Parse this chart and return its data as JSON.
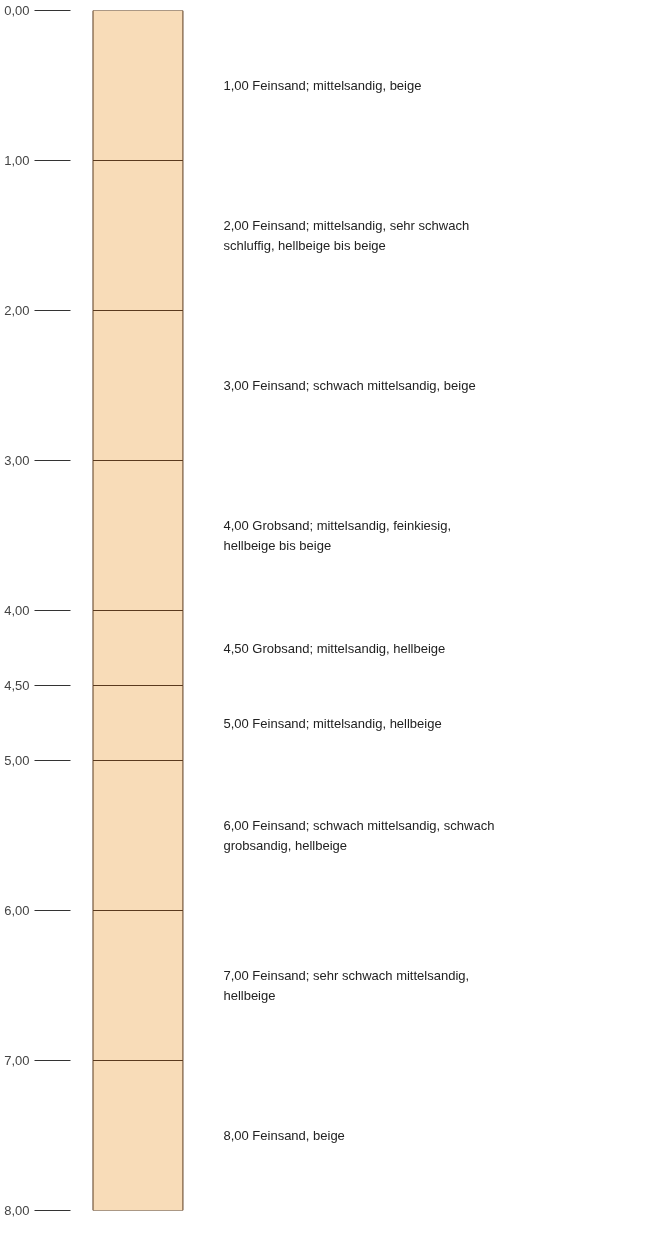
{
  "chart_data": {
    "type": "bar",
    "stacked": true,
    "categories": [
      null
    ],
    "tick_labels": "y",
    "grid": false,
    "ylim": [
      8,
      0
    ],
    "yticks": [
      {
        "value": 0,
        "label": "0,00"
      },
      {
        "value": 1,
        "label": "1,00"
      },
      {
        "value": 2,
        "label": "2,00"
      },
      {
        "value": 3,
        "label": "3,00"
      },
      {
        "value": 4,
        "label": "4,00"
      },
      {
        "value": 4.5,
        "label": "4,50"
      },
      {
        "value": 5,
        "label": "5,00"
      },
      {
        "value": 6,
        "label": "6,00"
      },
      {
        "value": 7,
        "label": "7,00"
      },
      {
        "value": 8,
        "label": "8,00"
      }
    ],
    "series": [
      {
        "name": "1,00  Feinsand; mittelsandig, beige",
        "color": "#f8dcb8",
        "values": [
          1
        ]
      },
      {
        "name": "2,00  Feinsand; mittelsandig, sehr schwach schluffig, hellbeige bis beige",
        "color": "#f8dcb8",
        "values": [
          1
        ]
      },
      {
        "name": "3,00  Feinsand; schwach mittelsandig, beige",
        "color": "#f8dcb8",
        "values": [
          1
        ]
      },
      {
        "name": "4,00  Grobsand; mittelsandig, feinkiesig, hellbeige bis beige",
        "color": "#f8dcb8",
        "values": [
          1
        ]
      },
      {
        "name": "4,50  Grobsand; mittelsandig, hellbeige",
        "color": "#f8dcb8",
        "values": [
          0.5
        ]
      },
      {
        "name": "5,00  Feinsand; mittelsandig, hellbeige",
        "color": "#f8dcb8",
        "values": [
          0.5
        ]
      },
      {
        "name": "6,00  Feinsand; schwach mittelsandig, schwach grobsandig, hellbeige",
        "color": "#f8dcb8",
        "values": [
          1
        ]
      },
      {
        "name": "7,00  Feinsand; sehr schwach mittelsandig, hellbeige",
        "color": "#f8dcb8",
        "values": [
          1
        ]
      },
      {
        "name": "8,00  Feinsand, beige",
        "color": "#f8dcb8",
        "values": [
          1
        ]
      }
    ]
  }
}
